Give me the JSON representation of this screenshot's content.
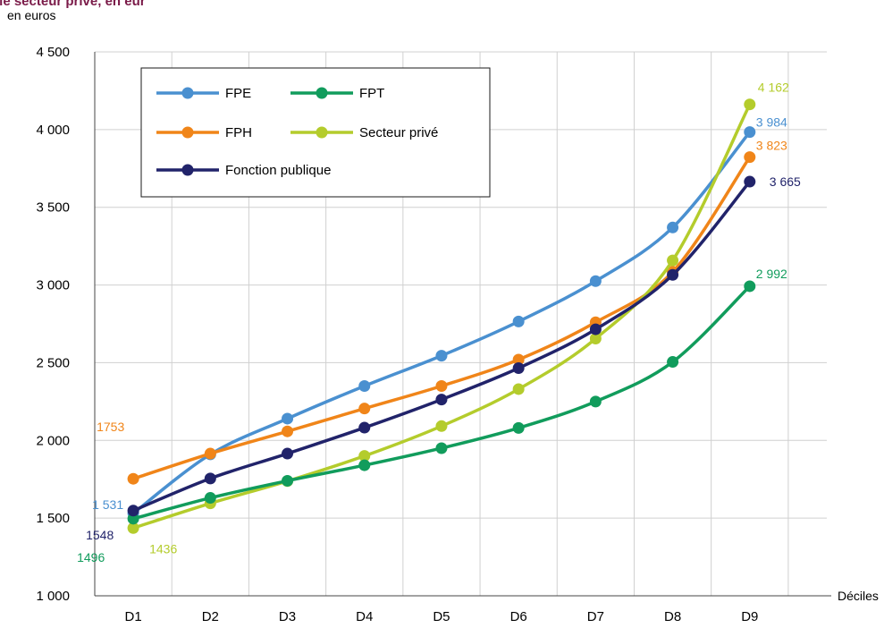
{
  "chart_data": {
    "type": "line",
    "title": "",
    "title_fragment": "ur le secteur privé, en eur",
    "unit_label": "en euros",
    "xlabel": "Déciles",
    "ylabel": "",
    "categories": [
      "D1",
      "D2",
      "D3",
      "D4",
      "D5",
      "D6",
      "D7",
      "D8",
      "D9"
    ],
    "ylim": [
      1000,
      4500
    ],
    "yticks": [
      1000,
      1500,
      2000,
      2500,
      3000,
      3500,
      4000,
      4500
    ],
    "ytick_labels": [
      "1 000",
      "1 500",
      "2 000",
      "2 500",
      "3 000",
      "3 500",
      "4 000",
      "4 500"
    ],
    "grid": true,
    "legend_placement": "top-left",
    "series": [
      {
        "name": "FPE",
        "color": "#4a90d0",
        "values": [
          1531,
          1910,
          2140,
          2350,
          2545,
          2765,
          3025,
          3370,
          3984
        ],
        "labels": [
          {
            "index": 0,
            "text": "1 531"
          },
          {
            "index": 8,
            "text": "3 984"
          }
        ]
      },
      {
        "name": "FPT",
        "color": "#119c5c",
        "values": [
          1496,
          1630,
          1740,
          1840,
          1950,
          2080,
          2250,
          2505,
          2992
        ],
        "labels": [
          {
            "index": 0,
            "text": "1496"
          },
          {
            "index": 8,
            "text": "2 992"
          }
        ]
      },
      {
        "name": "FPH",
        "color": "#f08519",
        "values": [
          1753,
          1915,
          2058,
          2205,
          2350,
          2520,
          2760,
          3085,
          3823
        ],
        "labels": [
          {
            "index": 0,
            "text": "1753"
          },
          {
            "index": 8,
            "text": "3 823"
          }
        ]
      },
      {
        "name": "Secteur privé",
        "color": "#b4cc2c",
        "values": [
          1436,
          1595,
          1738,
          1900,
          2092,
          2330,
          2655,
          3158,
          4162
        ],
        "labels": [
          {
            "index": 0,
            "text": "1436"
          },
          {
            "index": 8,
            "text": "4 162"
          }
        ]
      },
      {
        "name": "Fonction publique",
        "color": "#21236a",
        "values": [
          1548,
          1755,
          1915,
          2082,
          2263,
          2465,
          2715,
          3065,
          3665
        ],
        "labels": [
          {
            "index": 0,
            "text": "1548"
          },
          {
            "index": 8,
            "text": "3 665"
          }
        ]
      }
    ]
  }
}
